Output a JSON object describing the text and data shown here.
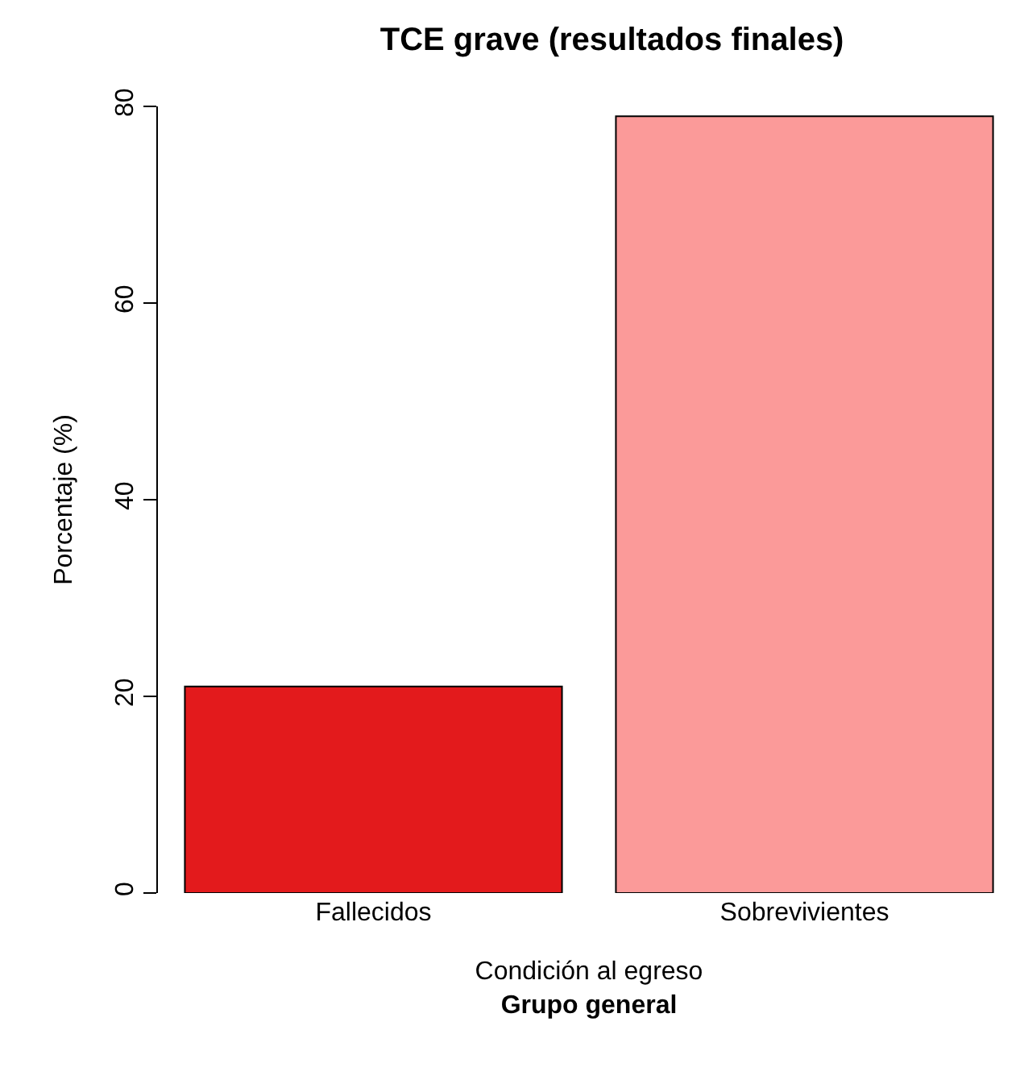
{
  "chart_data": {
    "type": "bar",
    "title": "TCE grave (resultados finales)",
    "subtitle": "Grupo general",
    "xlabel": "Condición al egreso",
    "ylabel": "Porcentaje (%)",
    "categories": [
      "Fallecidos",
      "Sobrevivientes"
    ],
    "values": [
      21,
      79
    ],
    "colors": [
      "#e31a1c",
      "#fb9a99"
    ],
    "ylim": [
      0,
      80
    ],
    "yticks": [
      0,
      20,
      40,
      60,
      80
    ]
  }
}
